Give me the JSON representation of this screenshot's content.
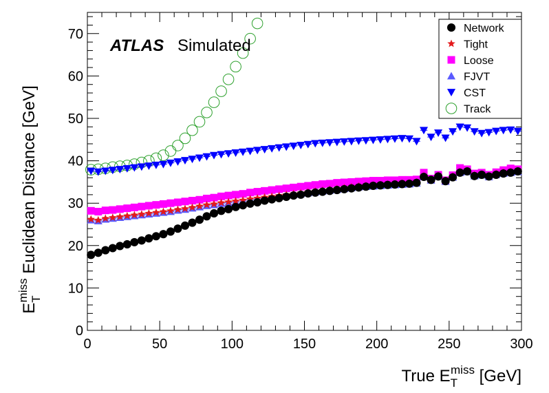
{
  "chart_data": {
    "type": "scatter",
    "atlas_label": "ATLAS",
    "atlas_sublabel": "Simulated",
    "xlabel": {
      "main": "True E",
      "sup": "miss",
      "sub": "T",
      "unit": " [GeV]"
    },
    "ylabel": {
      "main": "E",
      "sup": "miss",
      "sub": "T",
      "rest": " Euclidean Distance [GeV]"
    },
    "xlim": [
      0,
      300
    ],
    "ylim": [
      0,
      75
    ],
    "xticks": [
      "0",
      "50",
      "100",
      "150",
      "200",
      "250",
      "300"
    ],
    "yticks": [
      "0",
      "10",
      "20",
      "30",
      "40",
      "50",
      "60",
      "70"
    ],
    "legend_position": "top-right",
    "series": [
      {
        "name": "Network",
        "marker": "circle",
        "color": "#000000",
        "x": [
          2.5,
          7.5,
          12.5,
          17.5,
          22.5,
          27.5,
          32.5,
          37.5,
          42.5,
          47.5,
          52.5,
          57.5,
          62.5,
          67.5,
          72.5,
          77.5,
          82.5,
          87.5,
          92.5,
          97.5,
          102.5,
          107.5,
          112.5,
          117.5,
          122.5,
          127.5,
          132.5,
          137.5,
          142.5,
          147.5,
          152.5,
          157.5,
          162.5,
          167.5,
          172.5,
          177.5,
          182.5,
          187.5,
          192.5,
          197.5,
          202.5,
          207.5,
          212.5,
          217.5,
          222.5,
          227.5,
          232.5,
          237.5,
          242.5,
          247.5,
          252.5,
          257.5,
          262.5,
          267.5,
          272.5,
          277.5,
          282.5,
          287.5,
          292.5,
          297.5
        ],
        "y": [
          17.8,
          18.3,
          18.9,
          19.4,
          19.9,
          20.3,
          20.8,
          21.2,
          21.7,
          22.2,
          22.7,
          23.3,
          24.0,
          24.7,
          25.4,
          26.1,
          26.9,
          27.6,
          28.2,
          28.6,
          29.1,
          29.5,
          29.9,
          30.2,
          30.6,
          30.9,
          31.2,
          31.5,
          31.8,
          32.0,
          32.3,
          32.5,
          32.7,
          32.9,
          33.1,
          33.3,
          33.5,
          33.7,
          33.9,
          34.1,
          34.2,
          34.3,
          34.4,
          34.5,
          34.6,
          34.8,
          36.2,
          35.5,
          36.3,
          35.2,
          36.1,
          37.2,
          37.5,
          36.4,
          36.7,
          36.3,
          36.7,
          37.0,
          37.2,
          37.5
        ]
      },
      {
        "name": "Tight",
        "marker": "star",
        "color": "#e31a1c",
        "x": [
          2.5,
          7.5,
          12.5,
          17.5,
          22.5,
          27.5,
          32.5,
          37.5,
          42.5,
          47.5,
          52.5,
          57.5,
          62.5,
          67.5,
          72.5,
          77.5,
          82.5,
          87.5,
          92.5,
          97.5,
          102.5,
          107.5,
          112.5,
          117.5,
          122.5,
          127.5,
          132.5,
          137.5,
          142.5,
          147.5,
          152.5,
          157.5,
          162.5,
          167.5,
          172.5,
          177.5,
          182.5,
          187.5,
          192.5,
          197.5,
          202.5,
          207.5,
          212.5,
          217.5,
          222.5,
          227.5,
          232.5,
          237.5,
          242.5,
          247.5,
          252.5,
          257.5,
          262.5,
          267.5,
          272.5,
          277.5,
          282.5,
          287.5,
          292.5,
          297.5
        ],
        "y": [
          26.2,
          26.0,
          26.4,
          26.6,
          26.8,
          27.0,
          27.2,
          27.4,
          27.6,
          27.8,
          28.0,
          28.2,
          28.5,
          28.7,
          29.0,
          29.3,
          29.6,
          29.8,
          30.1,
          30.3,
          30.5,
          30.7,
          31.0,
          31.2,
          31.4,
          31.6,
          31.8,
          32.0,
          32.2,
          32.4,
          32.6,
          32.8,
          33.0,
          33.2,
          33.4,
          33.6,
          33.8,
          34.0,
          34.1,
          34.2,
          34.3,
          34.4,
          34.5,
          34.6,
          34.7,
          34.9,
          36.4,
          35.6,
          36.5,
          35.3,
          36.3,
          37.4,
          37.6,
          36.6,
          36.8,
          36.4,
          36.9,
          37.2,
          37.4,
          37.6
        ]
      },
      {
        "name": "Loose",
        "marker": "square",
        "color": "#ff00ff",
        "x": [
          2.5,
          7.5,
          12.5,
          17.5,
          22.5,
          27.5,
          32.5,
          37.5,
          42.5,
          47.5,
          52.5,
          57.5,
          62.5,
          67.5,
          72.5,
          77.5,
          82.5,
          87.5,
          92.5,
          97.5,
          102.5,
          107.5,
          112.5,
          117.5,
          122.5,
          127.5,
          132.5,
          137.5,
          142.5,
          147.5,
          152.5,
          157.5,
          162.5,
          167.5,
          172.5,
          177.5,
          182.5,
          187.5,
          192.5,
          197.5,
          202.5,
          207.5,
          212.5,
          217.5,
          222.5,
          227.5,
          232.5,
          237.5,
          242.5,
          247.5,
          252.5,
          257.5,
          262.5,
          267.5,
          272.5,
          277.5,
          282.5,
          287.5,
          292.5,
          297.5
        ],
        "y": [
          28.2,
          28.0,
          28.3,
          28.4,
          28.6,
          28.8,
          29.0,
          29.2,
          29.4,
          29.6,
          29.8,
          30.0,
          30.2,
          30.4,
          30.6,
          30.8,
          31.1,
          31.3,
          31.6,
          31.8,
          32.0,
          32.2,
          32.5,
          32.7,
          32.9,
          33.1,
          33.3,
          33.5,
          33.7,
          33.9,
          34.1,
          34.3,
          34.5,
          34.6,
          34.8,
          34.9,
          35.0,
          35.1,
          35.2,
          35.3,
          35.3,
          35.4,
          35.4,
          35.5,
          35.5,
          35.6,
          37.2,
          35.8,
          36.7,
          35.4,
          36.6,
          38.3,
          38.0,
          37.0,
          37.2,
          36.7,
          37.3,
          37.8,
          38.2,
          38.0
        ]
      },
      {
        "name": "FJVT",
        "marker": "triangle-up",
        "color": "#5a5aff",
        "x": [
          2.5,
          7.5,
          12.5,
          17.5,
          22.5,
          27.5,
          32.5,
          37.5,
          42.5,
          47.5,
          52.5,
          57.5,
          62.5,
          67.5,
          72.5,
          77.5,
          82.5,
          87.5,
          92.5,
          97.5,
          102.5,
          107.5,
          112.5,
          117.5,
          122.5,
          127.5,
          132.5,
          137.5,
          142.5,
          147.5,
          152.5,
          157.5,
          162.5,
          167.5,
          172.5,
          177.5,
          182.5,
          187.5,
          192.5,
          197.5,
          202.5,
          207.5,
          212.5,
          217.5,
          222.5,
          227.5,
          232.5,
          237.5,
          242.5,
          247.5,
          252.5,
          257.5,
          262.5,
          267.5,
          272.5,
          277.5,
          282.5,
          287.5,
          292.5,
          297.5
        ],
        "y": [
          26.0,
          25.8,
          26.2,
          26.4,
          26.6,
          26.8,
          27.0,
          27.2,
          27.4,
          27.6,
          27.8,
          28.0,
          28.3,
          28.5,
          28.8,
          29.1,
          29.4,
          29.6,
          29.9,
          30.1,
          30.3,
          30.5,
          30.8,
          31.0,
          31.2,
          31.4,
          31.6,
          31.8,
          32.0,
          32.2,
          32.4,
          32.6,
          32.8,
          33.0,
          33.2,
          33.4,
          33.6,
          33.8,
          33.9,
          34.0,
          34.1,
          34.2,
          34.3,
          34.4,
          34.5,
          34.7,
          36.2,
          35.4,
          36.3,
          35.1,
          36.1,
          37.2,
          37.4,
          36.4,
          36.6,
          36.2,
          36.7,
          37.0,
          37.2,
          37.4
        ]
      },
      {
        "name": "CST",
        "marker": "triangle-down",
        "color": "#0000ff",
        "x": [
          2.5,
          7.5,
          12.5,
          17.5,
          22.5,
          27.5,
          32.5,
          37.5,
          42.5,
          47.5,
          52.5,
          57.5,
          62.5,
          67.5,
          72.5,
          77.5,
          82.5,
          87.5,
          92.5,
          97.5,
          102.5,
          107.5,
          112.5,
          117.5,
          122.5,
          127.5,
          132.5,
          137.5,
          142.5,
          147.5,
          152.5,
          157.5,
          162.5,
          167.5,
          172.5,
          177.5,
          182.5,
          187.5,
          192.5,
          197.5,
          202.5,
          207.5,
          212.5,
          217.5,
          222.5,
          227.5,
          232.5,
          237.5,
          242.5,
          247.5,
          252.5,
          257.5,
          262.5,
          267.5,
          272.5,
          277.5,
          282.5,
          287.5,
          292.5,
          297.5
        ],
        "y": [
          37.6,
          37.4,
          37.6,
          37.8,
          38.0,
          38.2,
          38.4,
          38.6,
          38.8,
          39.0,
          39.2,
          39.5,
          39.8,
          40.1,
          40.4,
          40.7,
          41.0,
          41.3,
          41.5,
          41.7,
          41.9,
          42.1,
          42.3,
          42.5,
          42.7,
          42.9,
          43.1,
          43.3,
          43.5,
          43.7,
          43.9,
          44.1,
          44.2,
          44.3,
          44.4,
          44.5,
          44.6,
          44.7,
          44.8,
          44.9,
          45.0,
          45.1,
          45.2,
          45.3,
          45.2,
          44.6,
          47.2,
          45.6,
          46.6,
          45.4,
          46.9,
          48.0,
          47.8,
          46.9,
          46.5,
          46.7,
          47.0,
          47.2,
          47.3,
          47.0
        ]
      },
      {
        "name": "Track",
        "marker": "open-circle",
        "color": "#2ca02c",
        "x": [
          2.5,
          7.5,
          12.5,
          17.5,
          22.5,
          27.5,
          32.5,
          37.5,
          42.5,
          47.5,
          52.5,
          57.5,
          62.5,
          67.5,
          72.5,
          77.5,
          82.5,
          87.5,
          92.5,
          97.5,
          102.5,
          107.5,
          112.5,
          117.5
        ],
        "y": [
          37.9,
          38.0,
          38.2,
          38.5,
          38.7,
          38.9,
          39.2,
          39.6,
          40.0,
          40.6,
          41.3,
          42.3,
          43.6,
          45.3,
          47.2,
          49.2,
          51.4,
          53.8,
          56.4,
          59.2,
          62.2,
          65.4,
          68.8,
          72.4
        ]
      }
    ]
  }
}
